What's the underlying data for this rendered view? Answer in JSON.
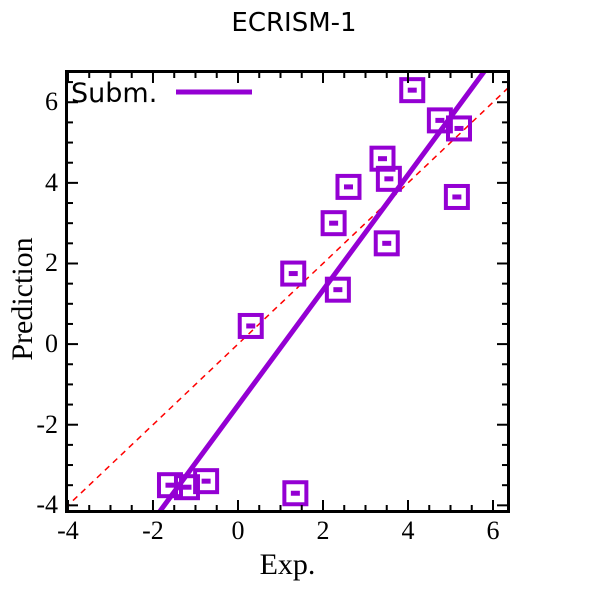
{
  "title": "ECRISM-1",
  "legend": {
    "label": "Subm."
  },
  "chart_data": {
    "type": "scatter",
    "title": "ECRISM-1",
    "xlabel": "Exp.",
    "ylabel": "Prediction",
    "xlim": [
      -4.07,
      6.4
    ],
    "ylim": [
      -4.19,
      6.8
    ],
    "x_major_ticks": [
      -4,
      -2,
      0,
      2,
      4,
      6
    ],
    "y_major_ticks": [
      -4,
      -2,
      0,
      2,
      4,
      6
    ],
    "minor_tick_step": 0.5,
    "grid": false,
    "legend_position": "top-left",
    "colors": {
      "series": "#9400D3",
      "identity": "#FF0000",
      "frame": "#000000"
    },
    "series": [
      {
        "name": "Subm.",
        "marker": "open-square-center-dash",
        "color": "#9400D3",
        "points": [
          [
            -1.6,
            -3.5
          ],
          [
            -1.2,
            -3.55
          ],
          [
            -0.75,
            -3.4
          ],
          [
            1.35,
            -3.7
          ],
          [
            0.3,
            0.45
          ],
          [
            1.3,
            1.75
          ],
          [
            2.35,
            1.35
          ],
          [
            2.25,
            3.0
          ],
          [
            2.6,
            3.9
          ],
          [
            3.4,
            4.6
          ],
          [
            3.55,
            4.1
          ],
          [
            3.5,
            2.5
          ],
          [
            4.1,
            6.3
          ],
          [
            4.75,
            5.55
          ],
          [
            5.2,
            5.35
          ],
          [
            5.15,
            3.65
          ]
        ]
      }
    ],
    "fit_line": {
      "series": "Subm.",
      "color": "#9400D3",
      "slope": 1.43,
      "intercept": -1.52,
      "style": "solid"
    },
    "identity_line": {
      "color": "#FF0000",
      "slope": 1,
      "intercept": 0,
      "style": "dashed"
    }
  }
}
